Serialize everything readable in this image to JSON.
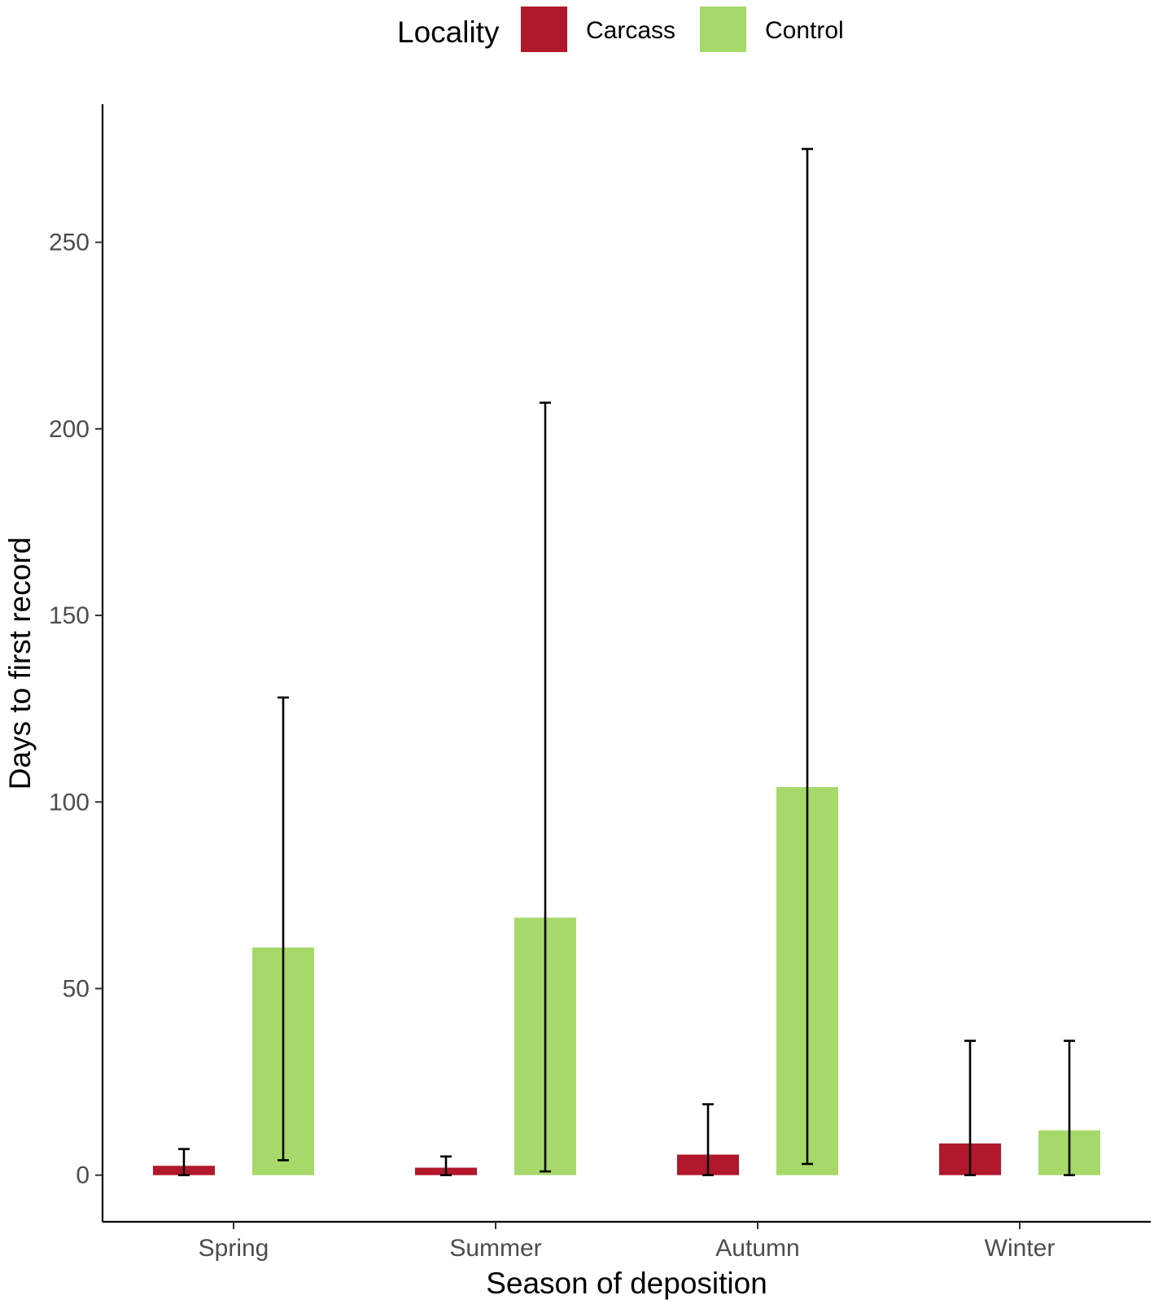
{
  "chart_data": {
    "type": "bar",
    "title": "",
    "xlabel": "Season of deposition",
    "ylabel": "Days to first record",
    "categories": [
      "Spring",
      "Summer",
      "Autumn",
      "Winter"
    ],
    "ylim": [
      -12.5,
      287
    ],
    "yticks": [
      0,
      50,
      100,
      150,
      200,
      250
    ],
    "grid": false,
    "legend": {
      "title": "Locality",
      "placement": "top",
      "entries": [
        "Carcass",
        "Control"
      ]
    },
    "series": [
      {
        "name": "Carcass",
        "color": "#B2182B",
        "values": [
          2.5,
          2,
          5.5,
          8.5
        ],
        "error_low": [
          0,
          0,
          0,
          0
        ],
        "error_high": [
          7,
          5,
          19,
          36
        ]
      },
      {
        "name": "Control",
        "color": "#A6D96A",
        "values": [
          61,
          69,
          104,
          12
        ],
        "error_low": [
          4,
          1,
          3,
          0
        ],
        "error_high": [
          128,
          207,
          275,
          36
        ]
      }
    ]
  }
}
